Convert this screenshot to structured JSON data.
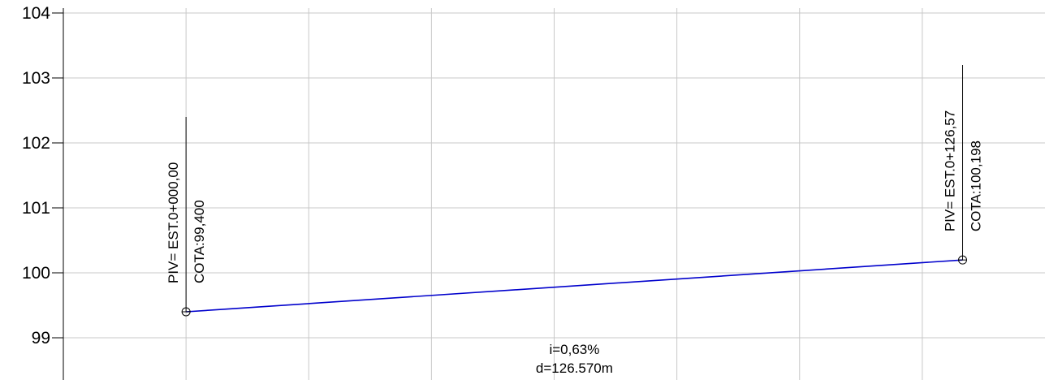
{
  "chart_data": {
    "type": "line",
    "title": "",
    "xlabel": "",
    "ylabel": "",
    "ylim": [
      98.35,
      104.2
    ],
    "yticks": [
      99,
      100,
      101,
      102,
      103,
      104
    ],
    "xlim": [
      -20,
      140
    ],
    "xgrid": [
      0,
      20,
      40,
      60,
      80,
      100,
      120
    ],
    "grid": true,
    "colors": {
      "line": "#0000cc",
      "grid": "#c8c8c8",
      "axis": "#000000"
    },
    "series": [
      {
        "x": [
          0,
          126.57
        ],
        "y": [
          99.4,
          100.198
        ]
      }
    ],
    "annotations": [
      {
        "x": 0,
        "y": 99.4,
        "stake_top": 102.4,
        "label1": "PIV= EST.0+000,00",
        "label2": "COTA:99,400"
      },
      {
        "x": 126.57,
        "y": 100.198,
        "stake_top": 103.2,
        "label1": "PIV= EST.0+126,57",
        "label2": "COTA:100,198"
      }
    ],
    "segment_label": {
      "x": 63.3,
      "slope": "i=0,63%",
      "distance": "d=126.570m"
    }
  }
}
